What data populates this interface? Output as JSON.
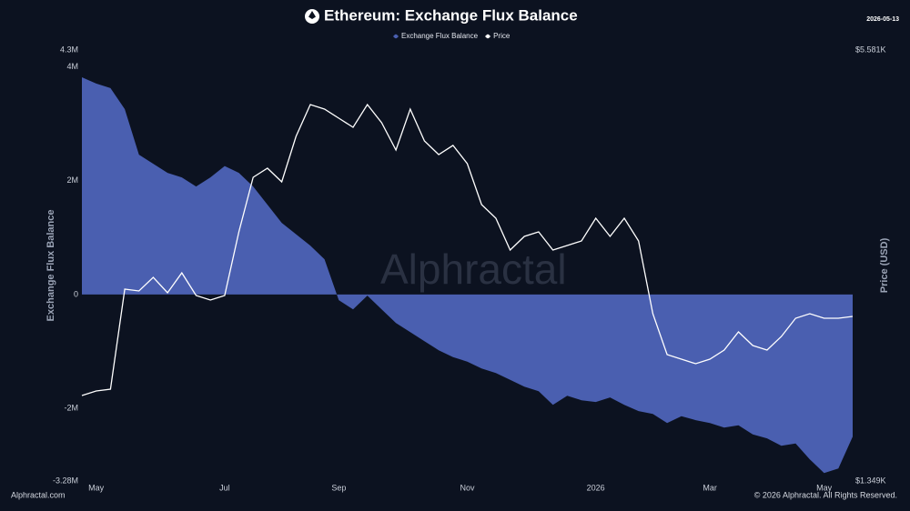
{
  "chart_data": {
    "type": "area",
    "title": "Ethereum: Exchange Flux Balance",
    "date": "2026-05-13",
    "watermark": "Alphractal",
    "source": "Alphractal.com",
    "copyright": "© 2026 Alphractal. All Rights Reserved.",
    "y_label": "Exchange Flux Balance",
    "y2_label": "Price (USD)",
    "categories": [
      null,
      "May",
      null,
      null,
      null,
      null,
      null,
      null,
      null,
      null,
      "Jul",
      null,
      null,
      null,
      null,
      null,
      null,
      null,
      "Sep",
      null,
      null,
      null,
      null,
      null,
      null,
      null,
      null,
      "Nov",
      null,
      null,
      null,
      null,
      null,
      null,
      null,
      null,
      "2026",
      null,
      null,
      null,
      null,
      null,
      null,
      null,
      "Mar",
      null,
      null,
      null,
      null,
      null,
      null,
      null,
      "May",
      null,
      null
    ],
    "ylim": [
      -3.28,
      4.3
    ],
    "yticks": [
      {
        "value": -3.28,
        "label": "-3.28M"
      },
      {
        "value": -2,
        "label": "-2M"
      },
      {
        "value": 0,
        "label": "0"
      },
      {
        "value": 2,
        "label": "2M"
      },
      {
        "value": 4,
        "label": "4M"
      },
      {
        "value": 4.3,
        "label": "4.3M"
      }
    ],
    "y2lim": [
      1349,
      5581
    ],
    "y2ticks": [
      {
        "value": 1349,
        "label": "$1.349K"
      },
      {
        "value": 5581,
        "label": "$5.581K"
      }
    ],
    "grid": false,
    "series": [
      {
        "name": "Exchange Flux Balance",
        "color": "#4a5fb0",
        "type": "area",
        "values": [
          3.82,
          3.71,
          3.63,
          3.26,
          2.46,
          2.3,
          2.14,
          2.06,
          1.9,
          2.06,
          2.26,
          2.14,
          1.9,
          1.58,
          1.26,
          1.06,
          0.86,
          0.62,
          -0.1,
          -0.26,
          -0.02,
          -0.26,
          -0.5,
          -0.66,
          -0.82,
          -0.98,
          -1.1,
          -1.18,
          -1.3,
          -1.38,
          -1.5,
          -1.62,
          -1.7,
          -1.94,
          -1.78,
          -1.86,
          -1.89,
          -1.81,
          -1.94,
          -2.05,
          -2.1,
          -2.26,
          -2.14,
          -2.21,
          -2.26,
          -2.34,
          -2.3,
          -2.46,
          -2.53,
          -2.66,
          -2.62,
          -2.9,
          -3.14,
          -3.06,
          -2.5
        ]
      },
      {
        "name": "Price",
        "color": "#ffffff",
        "type": "line",
        "axis": "y2",
        "values": [
          2188,
          2233,
          2251,
          3233,
          3215,
          3349,
          3197,
          3393,
          3170,
          3126,
          3170,
          3795,
          4331,
          4420,
          4286,
          4733,
          5045,
          5001,
          4911,
          4822,
          5045,
          4867,
          4599,
          5001,
          4688,
          4554,
          4644,
          4465,
          4063,
          3929,
          3617,
          3751,
          3795,
          3617,
          3661,
          3706,
          3929,
          3751,
          3929,
          3706,
          2992,
          2590,
          2545,
          2501,
          2545,
          2635,
          2813,
          2679,
          2635,
          2768,
          2947,
          2992,
          2947,
          2947,
          2965
        ]
      }
    ]
  }
}
